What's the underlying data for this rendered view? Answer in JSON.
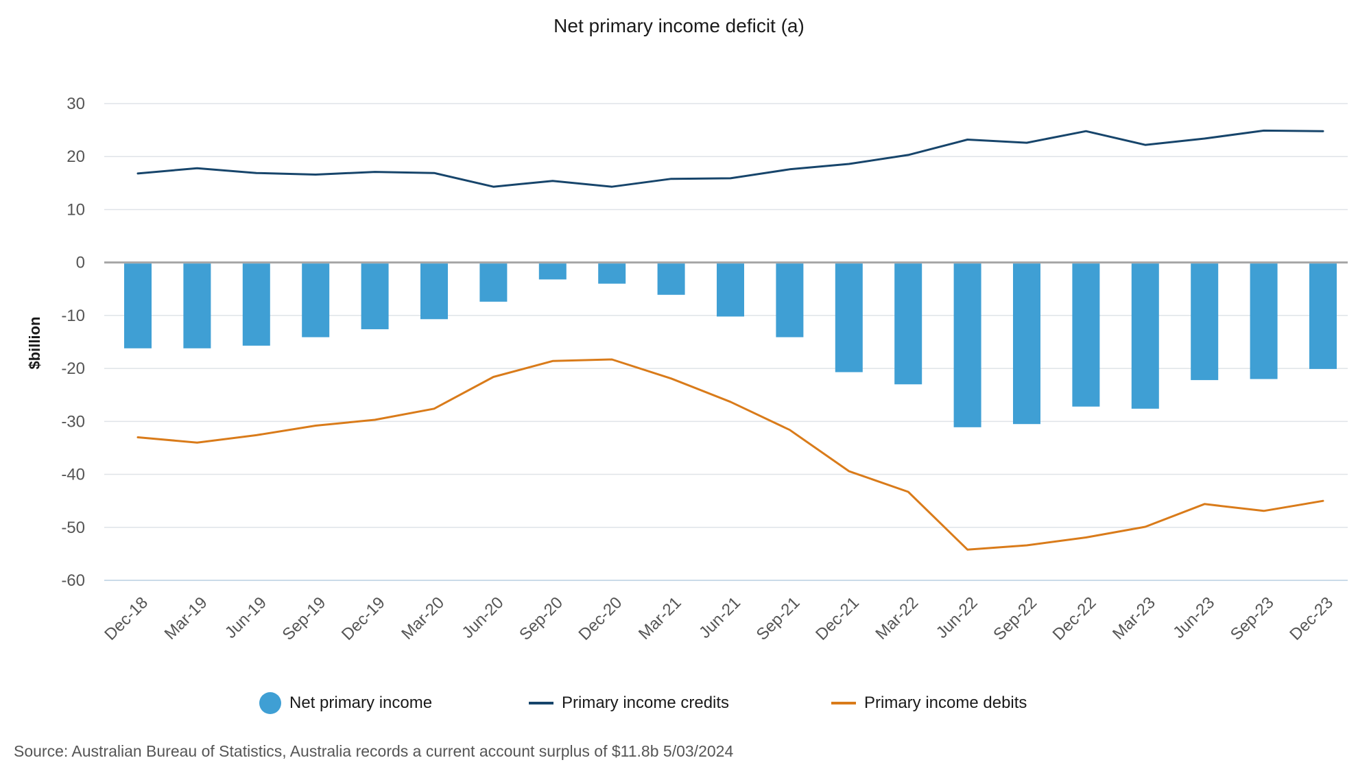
{
  "chart_data": {
    "type": "bar",
    "title": "Net primary income deficit (a)",
    "ylabel": "$billion",
    "xlabel": "",
    "ylim": [
      -60,
      30
    ],
    "yticks": [
      30,
      20,
      10,
      0,
      -10,
      -20,
      -30,
      -40,
      -50,
      -60
    ],
    "grid": true,
    "legend_position": "bottom",
    "categories": [
      "Dec-18",
      "Mar-19",
      "Jun-19",
      "Sep-19",
      "Dec-19",
      "Mar-20",
      "Jun-20",
      "Sep-20",
      "Dec-20",
      "Mar-21",
      "Jun-21",
      "Sep-21",
      "Dec-21",
      "Mar-22",
      "Jun-22",
      "Sep-22",
      "Dec-22",
      "Mar-23",
      "Jun-23",
      "Sep-23",
      "Dec-23"
    ],
    "series": [
      {
        "name": "Net primary income",
        "type": "bar",
        "color": "#3f9fd4",
        "values": [
          -16.2,
          -16.2,
          -15.7,
          -14.1,
          -12.6,
          -10.7,
          -7.4,
          -3.2,
          -4.0,
          -6.1,
          -10.2,
          -14.1,
          -20.7,
          -23.0,
          -31.1,
          -30.5,
          -27.2,
          -27.6,
          -22.2,
          -22.0,
          -20.1
        ]
      },
      {
        "name": "Primary income credits",
        "type": "line",
        "color": "#17456b",
        "values": [
          16.8,
          17.8,
          16.9,
          16.6,
          17.1,
          16.9,
          14.3,
          15.4,
          14.3,
          15.8,
          15.9,
          17.6,
          18.6,
          20.3,
          23.2,
          22.6,
          24.8,
          22.2,
          23.4,
          24.9,
          24.8
        ]
      },
      {
        "name": "Primary income debits",
        "type": "line",
        "color": "#d97b1a",
        "values": [
          -33.0,
          -34.0,
          -32.6,
          -30.8,
          -29.7,
          -27.6,
          -21.6,
          -18.6,
          -18.3,
          -21.9,
          -26.3,
          -31.6,
          -39.4,
          -43.3,
          -54.2,
          -53.4,
          -51.9,
          -49.9,
          -45.6,
          -46.9,
          -45.0
        ]
      }
    ]
  },
  "source_text": "Source: Australian Bureau of Statistics, Australia records a current account surplus of $11.8b 5/03/2024"
}
